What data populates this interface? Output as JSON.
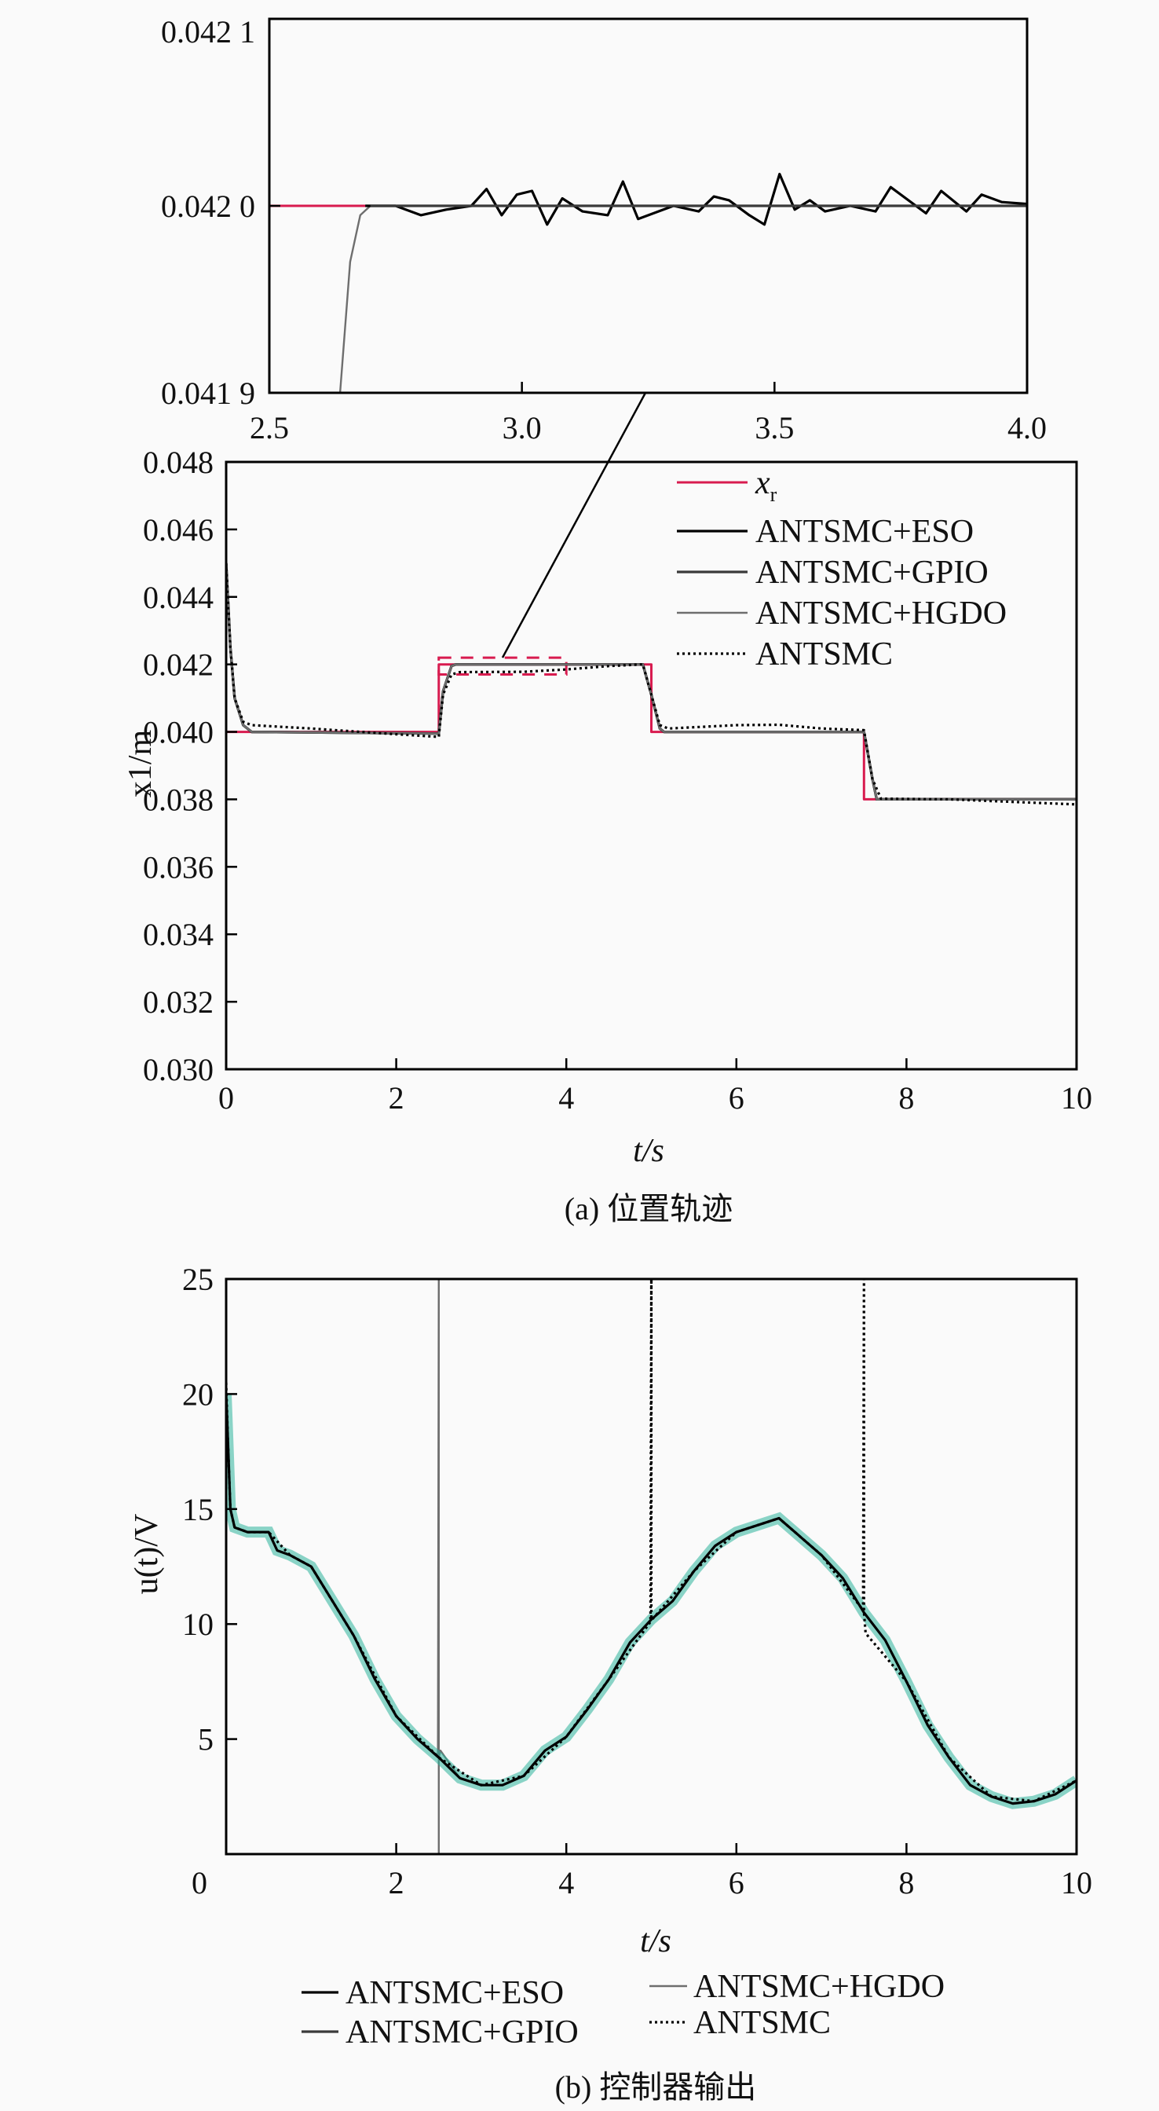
{
  "colors": {
    "xr": "#d81b4f",
    "eso": "#000000",
    "gpio": "#3a3a3a",
    "hgdo": "#6e6e6e",
    "antsmc": "#000000",
    "noise_fill": "#2bb39a",
    "zoom_box": "#d81b4f"
  },
  "chart_data": [
    {
      "id": "inset",
      "type": "line",
      "xlim": [
        2.5,
        4.0
      ],
      "ylim": [
        0.0419,
        0.0421
      ],
      "xticks": [
        "2.5",
        "3.0",
        "3.5",
        "4.0"
      ],
      "xtick_values": [
        2.5,
        3.0,
        3.5,
        4.0
      ],
      "yticks": [
        "0.042 1",
        "0.042 0",
        "0.041 9"
      ],
      "ytick_values": [
        0.0421,
        0.042,
        0.0419
      ],
      "series": [
        {
          "key": "xr",
          "style": "solid",
          "x": [
            2.5,
            2.6,
            2.7
          ],
          "y": [
            0.042,
            0.042,
            0.042
          ]
        },
        {
          "key": "hgdo",
          "style": "solid",
          "x": [
            2.64,
            2.66,
            2.68,
            2.7,
            2.75,
            2.9,
            3.1,
            3.3,
            3.5,
            3.7,
            3.9,
            4.0
          ],
          "y": [
            0.0419,
            0.04197,
            0.041995,
            0.042,
            0.042,
            0.042,
            0.042,
            0.042,
            0.042,
            0.042,
            0.042,
            0.042
          ]
        },
        {
          "key": "eso",
          "style": "solid",
          "x": [
            2.69,
            2.75,
            2.8,
            2.85,
            2.9,
            2.93,
            2.96,
            2.99,
            3.02,
            3.05,
            3.08,
            3.12,
            3.17,
            3.2,
            3.23,
            3.3,
            3.35,
            3.38,
            3.41,
            3.45,
            3.48,
            3.51,
            3.54,
            3.57,
            3.6,
            3.65,
            3.7,
            3.73,
            3.8,
            3.83,
            3.88,
            3.91,
            3.95,
            4.0
          ],
          "y": [
            0.042,
            0.042,
            0.041995,
            0.041998,
            0.042,
            0.042009,
            0.041995,
            0.042006,
            0.042008,
            0.04199,
            0.042004,
            0.041997,
            0.041995,
            0.042013,
            0.041993,
            0.042,
            0.041997,
            0.042005,
            0.042003,
            0.041995,
            0.04199,
            0.042017,
            0.041998,
            0.042003,
            0.041997,
            0.042,
            0.041997,
            0.04201,
            0.041996,
            0.042008,
            0.041997,
            0.042006,
            0.042002,
            0.042001
          ]
        },
        {
          "key": "gpio",
          "style": "solid",
          "x": [
            2.7,
            3.0,
            3.2,
            3.5,
            3.7,
            4.0
          ],
          "y": [
            0.042,
            0.042,
            0.042,
            0.042,
            0.042,
            0.042
          ]
        }
      ]
    },
    {
      "id": "position",
      "type": "line",
      "xlabel": "t/s",
      "ylabel": "x1/m",
      "caption": "(a) 位置轨迹",
      "xlim": [
        0,
        10
      ],
      "ylim": [
        0.03,
        0.048
      ],
      "xticks": [
        "0",
        "2",
        "4",
        "6",
        "8",
        "10"
      ],
      "xtick_values": [
        0,
        2,
        4,
        6,
        8,
        10
      ],
      "yticks": [
        "0.048",
        "0.046",
        "0.044",
        "0.042",
        "0.040",
        "0.038",
        "0.036",
        "0.034",
        "0.032",
        "0.030"
      ],
      "ytick_values": [
        0.048,
        0.046,
        0.044,
        0.042,
        0.04,
        0.038,
        0.036,
        0.034,
        0.032,
        0.03
      ],
      "legend": {
        "placement": "top-right",
        "entries": [
          {
            "key": "xr",
            "label": "x",
            "sub": "r",
            "style": "solid"
          },
          {
            "key": "eso",
            "label": "ANTSMC+ESO",
            "style": "solid"
          },
          {
            "key": "gpio",
            "label": "ANTSMC+GPIO",
            "style": "solid"
          },
          {
            "key": "hgdo",
            "label": "ANTSMC+HGDO",
            "style": "solid"
          },
          {
            "key": "antsmc",
            "label": "ANTSMC",
            "style": "dotted"
          }
        ]
      },
      "zoom_region": {
        "x": [
          2.5,
          4.0
        ],
        "y": [
          0.0417,
          0.0422
        ]
      },
      "series": [
        {
          "key": "xr",
          "style": "solid",
          "x": [
            0,
            2.5,
            2.5,
            5,
            5,
            7.5,
            7.5,
            10
          ],
          "y": [
            0.04,
            0.04,
            0.042,
            0.042,
            0.04,
            0.04,
            0.038,
            0.038
          ]
        },
        {
          "key": "eso",
          "style": "solid",
          "x": [
            0,
            0.05,
            0.1,
            0.2,
            0.3,
            2.5,
            2.55,
            2.65,
            2.7,
            4.9,
            5.0,
            5.1,
            5.15,
            7.5,
            7.6,
            7.65,
            10
          ],
          "y": [
            0.045,
            0.0425,
            0.041,
            0.0402,
            0.04,
            0.03995,
            0.0412,
            0.04195,
            0.042,
            0.042,
            0.0411,
            0.0401,
            0.04,
            0.04,
            0.0386,
            0.038,
            0.038
          ]
        },
        {
          "key": "gpio",
          "style": "solid",
          "x": [
            0,
            0.05,
            0.1,
            0.2,
            0.3,
            2.5,
            2.55,
            2.65,
            2.7,
            4.9,
            5.0,
            5.1,
            5.15,
            7.5,
            7.6,
            7.65,
            10
          ],
          "y": [
            0.045,
            0.0425,
            0.041,
            0.0402,
            0.04,
            0.03995,
            0.0412,
            0.04195,
            0.042,
            0.042,
            0.0411,
            0.0401,
            0.04,
            0.04,
            0.0386,
            0.038,
            0.038
          ]
        },
        {
          "key": "hgdo",
          "style": "solid",
          "x": [
            0,
            0.05,
            0.1,
            0.2,
            0.3,
            2.5,
            2.55,
            2.65,
            2.7,
            4.9,
            5.0,
            5.1,
            5.15,
            7.5,
            7.6,
            7.65,
            10
          ],
          "y": [
            0.045,
            0.0425,
            0.041,
            0.0402,
            0.04,
            0.03995,
            0.0412,
            0.04195,
            0.042,
            0.042,
            0.0411,
            0.0401,
            0.04,
            0.04,
            0.0386,
            0.038,
            0.038
          ]
        },
        {
          "key": "antsmc",
          "style": "dotted",
          "x": [
            0,
            0.05,
            0.1,
            0.2,
            0.3,
            1.0,
            2.0,
            2.5,
            2.55,
            2.65,
            2.75,
            3.5,
            4.0,
            4.5,
            4.9,
            5.0,
            5.1,
            5.2,
            6.0,
            6.5,
            7.0,
            7.5,
            7.6,
            7.7,
            8.5,
            9.0,
            10
          ],
          "y": [
            0.045,
            0.0425,
            0.041,
            0.0403,
            0.0402,
            0.0401,
            0.03993,
            0.03985,
            0.0411,
            0.0417,
            0.04177,
            0.04178,
            0.04185,
            0.04195,
            0.042,
            0.0411,
            0.0402,
            0.0401,
            0.0402,
            0.04021,
            0.0401,
            0.04005,
            0.0386,
            0.03802,
            0.038,
            0.03795,
            0.03785
          ]
        }
      ]
    },
    {
      "id": "control",
      "type": "line",
      "xlabel": "t/s",
      "ylabel": "u(t)/V",
      "caption": "(b) 控制器输出",
      "xlim": [
        0,
        10
      ],
      "ylim": [
        0,
        25
      ],
      "xticks": [
        "0",
        "2",
        "4",
        "6",
        "8",
        "10"
      ],
      "xtick_values": [
        0,
        2,
        4,
        6,
        8,
        10
      ],
      "yticks": [
        "25",
        "20",
        "15",
        "10",
        "5"
      ],
      "ytick_values": [
        25,
        20,
        15,
        10,
        5
      ],
      "legend": {
        "placement": "bottom",
        "entries": [
          {
            "key": "eso",
            "label": "ANTSMC+ESO",
            "style": "solid"
          },
          {
            "key": "hgdo",
            "label": "ANTSMC+HGDO",
            "style": "solid"
          },
          {
            "key": "gpio",
            "label": "ANTSMC+GPIO",
            "style": "solid"
          },
          {
            "key": "antsmc",
            "label": "ANTSMC",
            "style": "dotted"
          }
        ]
      },
      "series": [
        {
          "key": "hgdo",
          "style": "solid",
          "x": [
            0,
            0.02,
            0.05,
            0.1,
            0.25,
            0.5,
            0.6,
            0.75,
            1.0,
            1.25,
            1.5,
            1.75,
            2.0,
            2.25,
            2.49,
            2.5,
            2.5,
            2.5,
            2.52,
            2.75,
            3.0,
            3.25,
            3.5,
            3.75,
            4.0,
            4.25,
            4.5,
            4.75,
            5.0,
            5.25,
            5.5,
            5.75,
            6.0,
            6.25,
            6.5,
            6.75,
            7.0,
            7.25,
            7.5,
            7.75,
            8.0,
            8.25,
            8.5,
            8.75,
            9.0,
            9.25,
            9.5,
            9.75,
            10
          ],
          "y": [
            20,
            18,
            15,
            14.2,
            14,
            14,
            13.2,
            13,
            12.5,
            11,
            9.5,
            7.6,
            6,
            5,
            4.2,
            25,
            0,
            4.2,
            4.5,
            3.3,
            3,
            3,
            3.4,
            4.5,
            5.1,
            6.3,
            7.6,
            9.2,
            10.2,
            11,
            12.3,
            13.4,
            14,
            14.3,
            14.6,
            13.8,
            13,
            12,
            10.5,
            9.3,
            7.5,
            5.6,
            4.2,
            3,
            2.5,
            2.2,
            2.3,
            2.6,
            3.2
          ]
        },
        {
          "key": "eso",
          "style": "solid",
          "x": [
            0,
            0.02,
            0.05,
            0.1,
            0.25,
            0.5,
            0.6,
            0.75,
            1.0,
            1.25,
            1.5,
            1.75,
            2.0,
            2.25,
            2.5,
            2.75,
            3.0,
            3.25,
            3.5,
            3.75,
            4.0,
            4.25,
            4.5,
            4.75,
            5.0,
            5.25,
            5.5,
            5.75,
            6.0,
            6.25,
            6.5,
            6.75,
            7.0,
            7.25,
            7.5,
            7.75,
            8.0,
            8.25,
            8.5,
            8.75,
            9.0,
            9.25,
            9.5,
            9.75,
            10
          ],
          "y": [
            20,
            18,
            15,
            14.2,
            14,
            14,
            13.2,
            13,
            12.5,
            11,
            9.5,
            7.6,
            6,
            5,
            4.2,
            3.3,
            3,
            3,
            3.4,
            4.5,
            5.1,
            6.3,
            7.6,
            9.2,
            10.2,
            11,
            12.3,
            13.4,
            14,
            14.3,
            14.6,
            13.8,
            13,
            12,
            10.5,
            9.3,
            7.5,
            5.6,
            4.2,
            3,
            2.5,
            2.2,
            2.3,
            2.6,
            3.2
          ]
        },
        {
          "key": "antsmc",
          "style": "dotted",
          "x": [
            0,
            0.02,
            0.05,
            0.1,
            0.25,
            0.5,
            0.75,
            1.0,
            1.5,
            2.0,
            2.5,
            3.0,
            3.5,
            4.0,
            4.5,
            4.99,
            5.0,
            5.0,
            5.01,
            5.5,
            6.0,
            6.5,
            7.0,
            7.49,
            7.5,
            7.5,
            7.52,
            8.0,
            8.5,
            9.0,
            9.5,
            10
          ],
          "y": [
            20.5,
            18,
            15,
            14.2,
            14,
            14,
            13,
            12.5,
            9.5,
            6,
            4.2,
            3,
            3.4,
            5.1,
            7.6,
            10.1,
            25,
            10.2,
            10.2,
            12.3,
            14,
            14.6,
            13,
            10.6,
            25,
            10.5,
            9.6,
            7.5,
            4.2,
            2.5,
            2.3,
            3.2
          ]
        }
      ]
    }
  ]
}
